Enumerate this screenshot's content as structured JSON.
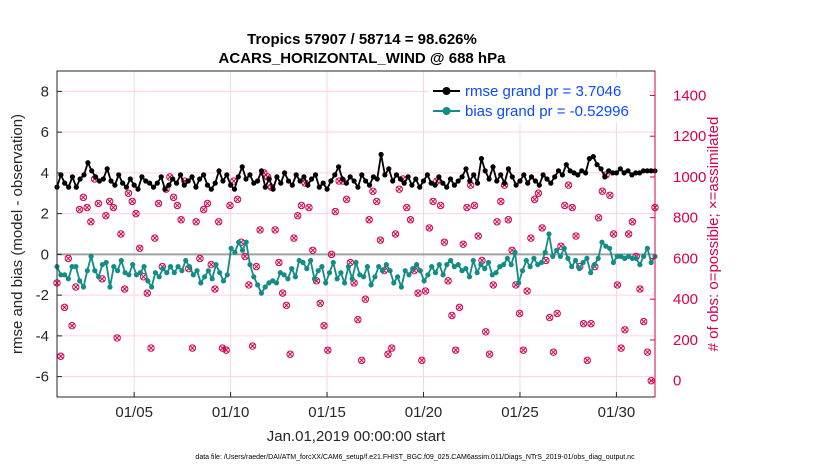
{
  "chart_data": {
    "type": "line",
    "title_line1": "Tropics 57907 / 58714 = 98.626%",
    "title_line2": "ACARS_HORIZONTAL_WIND @ 688 hPa",
    "xlabel": "Jan.01,2019 00:00:00 start",
    "ylabel": "rmse and bias (model - observation)",
    "ylabel_right": "# of obs: o=possible; ×=assimilated",
    "xlim": [
      1,
      32
    ],
    "ylim": [
      -7,
      9
    ],
    "ylim_right": [
      -80,
      1520
    ],
    "x_ticks": [
      5,
      10,
      15,
      20,
      25,
      30
    ],
    "x_tick_labels": [
      "01/05",
      "01/10",
      "01/15",
      "01/20",
      "01/25",
      "01/30"
    ],
    "y_ticks": [
      -6,
      -4,
      -2,
      0,
      2,
      4,
      6,
      8
    ],
    "y_tick_labels": [
      "-6",
      "-4",
      "-2",
      "0",
      "2",
      "4",
      "6",
      "8"
    ],
    "y_right_ticks": [
      0,
      200,
      400,
      600,
      800,
      1000,
      1200,
      1400
    ],
    "y_right_tick_labels": [
      "0",
      "200",
      "400",
      "600",
      "800",
      "1000",
      "1200",
      "1400"
    ],
    "colors": {
      "rmse": "#000000",
      "bias": "#128c86",
      "obs": "#d6004f",
      "legend_text": "#0a4bff",
      "zero_line": "#a0a0a0",
      "grid": "#ffd0e4"
    },
    "series": [
      {
        "name": "rmse grand pr = 3.7046",
        "values": [
          3.3,
          3.9,
          3.5,
          3.3,
          3.8,
          3.3,
          3.7,
          3.9,
          4.5,
          4.1,
          3.8,
          3.6,
          3.7,
          4.2,
          3.6,
          3.4,
          3.9,
          3.5,
          3.3,
          3.7,
          3.4,
          3.2,
          3.8,
          3.6,
          3.5,
          3.3,
          3.5,
          3.8,
          3.2,
          3.4,
          3.7,
          3.5,
          3.9,
          3.4,
          3.6,
          3.8,
          3.3,
          3.7,
          3.9,
          3.4,
          3.2,
          3.5,
          4.1,
          3.6,
          3.9,
          3.4,
          3.2,
          3.8,
          4.3,
          3.7,
          3.9,
          3.5,
          3.6,
          4.1,
          3.3,
          3.7,
          3.2,
          3.8,
          3.5,
          4.0,
          3.6,
          3.4,
          3.9,
          3.6,
          3.8,
          3.4,
          3.7,
          3.9,
          3.3,
          3.5,
          3.2,
          3.6,
          3.9,
          4.3,
          3.7,
          3.5,
          3.8,
          3.6,
          3.3,
          3.9,
          3.6,
          3.4,
          3.8,
          3.7,
          4.9,
          3.9,
          4.2,
          3.6,
          3.9,
          3.7,
          3.5,
          3.8,
          3.4,
          3.7,
          3.3,
          3.6,
          3.9,
          3.5,
          3.4,
          3.8,
          3.5,
          3.3,
          3.7,
          3.4,
          3.6,
          3.8,
          4.2,
          3.6,
          3.9,
          3.5,
          4.7,
          4.1,
          3.7,
          4.3,
          3.6,
          3.9,
          3.5,
          4.2,
          3.8,
          3.4,
          3.6,
          3.9,
          3.5,
          3.8,
          3.6,
          3.4,
          3.9,
          3.7,
          3.5,
          3.8,
          4.1,
          3.9,
          4.4,
          4.1,
          4.0,
          3.9,
          4.1,
          4.0,
          4.7,
          4.8,
          4.4,
          4.2,
          3.8,
          4.1,
          4.0,
          4.0,
          4.2,
          4.0,
          4.1,
          3.9,
          4.0,
          4.0,
          4.1,
          4.1,
          4.1,
          4.1
        ]
      },
      {
        "name": "bias grand pr = -0.52996",
        "values": [
          -0.6,
          -1.0,
          -1.0,
          -1.2,
          -0.6,
          -0.6,
          -1.3,
          -1.6,
          -0.8,
          -0.1,
          -0.8,
          -1.1,
          -0.5,
          -0.4,
          -1.6,
          -0.6,
          -0.8,
          -0.3,
          -0.9,
          -1.0,
          -0.5,
          -1.0,
          -0.9,
          -0.6,
          -1.3,
          -1.6,
          -0.9,
          -1.1,
          -0.7,
          -0.9,
          -0.6,
          -0.9,
          -0.6,
          -0.8,
          -0.3,
          -0.6,
          -1.0,
          -0.8,
          -1.4,
          -1.1,
          -0.8,
          -1.2,
          -0.5,
          -0.9,
          -1.3,
          -1.0,
          0.3,
          0.1,
          0.6,
          0.2,
          0.6,
          -0.5,
          -1.1,
          -1.5,
          -1.9,
          -1.6,
          -1.4,
          -1.3,
          -1.4,
          -0.9,
          -1.0,
          -1.2,
          -0.7,
          -1.1,
          -0.3,
          -0.4,
          -0.7,
          -0.3,
          -1.2,
          -0.8,
          -0.6,
          -1.4,
          -0.9,
          -0.4,
          -1.2,
          -0.9,
          -1.4,
          -0.6,
          -1.2,
          -0.4,
          -1.0,
          -1.1,
          -0.6,
          -1.5,
          -1.1,
          -0.6,
          -0.8,
          -0.5,
          -0.8,
          -1.4,
          -1.1,
          -1.6,
          -0.8,
          -1.0,
          -0.7,
          -0.5,
          -0.8,
          -1.3,
          -1.0,
          -0.6,
          -0.9,
          -0.5,
          -1.0,
          -0.5,
          -0.3,
          -0.6,
          -0.5,
          -0.8,
          -0.7,
          -1.1,
          -0.3,
          -0.9,
          -0.5,
          -0.7,
          -0.4,
          -1.0,
          -0.9,
          -0.6,
          -0.5,
          -0.2,
          -0.5,
          0.1,
          -1.4,
          -0.8,
          -0.3,
          -0.6,
          -0.2,
          -0.5,
          -0.4,
          0.1,
          1.0,
          -0.1,
          0.2,
          -0.1,
          0.3,
          -0.2,
          -0.6,
          -0.3,
          -0.7,
          -0.4,
          -0.2,
          -0.9,
          -0.5,
          -0.2,
          0.6,
          0.4,
          0.3,
          -0.4,
          -0.1,
          -0.1,
          -0.2,
          -0.1,
          -0.2,
          -0.2,
          -0.5,
          -0.1,
          0.3,
          -0.4,
          -0.1
        ]
      }
    ],
    "obs_possible": [
      480,
      120,
      360,
      600,
      270,
      460,
      840,
      900,
      850,
      780,
      990,
      870,
      500,
      810,
      880,
      850,
      210,
      720,
      450,
      920,
      880,
      820,
      650,
      510,
      430,
      160,
      700,
      870,
      560,
      940,
      1000,
      900,
      860,
      790,
      980,
      550,
      160,
      780,
      600,
      840,
      870,
      570,
      450,
      780,
      160,
      150,
      860,
      980,
      890,
      680,
      610,
      470,
      170,
      560,
      740,
      1020,
      1000,
      950,
      740,
      580,
      430,
      370,
      130,
      700,
      810,
      860,
      970,
      850,
      640,
      490,
      380,
      270,
      150,
      620,
      830,
      980,
      980,
      890,
      580,
      480,
      300,
      100,
      400,
      790,
      930,
      880,
      690,
      540,
      130,
      160,
      720,
      940,
      990,
      850,
      790,
      540,
      430,
      100,
      440,
      750,
      880,
      980,
      860,
      680,
      490,
      320,
      150,
      360,
      670,
      850,
      960,
      860,
      710,
      590,
      240,
      130,
      470,
      780,
      880,
      960,
      790,
      640,
      470,
      330,
      150,
      440,
      700,
      890,
      920,
      750,
      590,
      310,
      140,
      330,
      660,
      860,
      960,
      850,
      710,
      560,
      280,
      100,
      280,
      560,
      800,
      930,
      1010,
      910,
      720,
      470,
      160,
      250,
      720,
      780,
      610,
      450,
      290,
      140,
      0,
      850
    ],
    "legend": [
      "rmse grand pr = 3.7046",
      "bias grand pr = -0.52996"
    ],
    "legend_position": "top-right",
    "grid": true
  },
  "footnote": "data file: /Users/raeder/DAI/ATM_forcXX/CAM6_setup/f.e21.FHIST_BGC.f09_025.CAM6assim.011/Diags_NTrS_2019-01/obs_diag_output.nc"
}
